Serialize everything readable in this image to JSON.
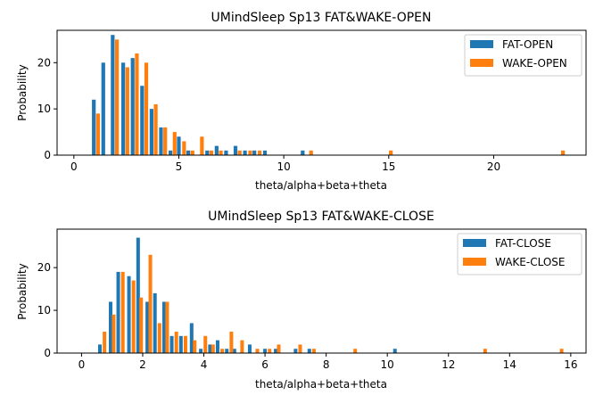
{
  "colors": {
    "fat": "#1f77b4",
    "wake": "#ff7f0e"
  },
  "chart_data": [
    {
      "type": "bar",
      "title": "UMindSleep Sp13 FAT&WAKE-OPEN",
      "xlabel": "theta/alpha+beta+theta",
      "ylabel": "Probability",
      "xlim": [
        -0.8,
        24.4
      ],
      "ylim": [
        0,
        27
      ],
      "xticks": [
        0,
        5,
        10,
        15,
        20
      ],
      "yticks": [
        0,
        10,
        20
      ],
      "legend": "top-right",
      "series": [
        {
          "name": "FAT-OPEN",
          "color": "#1f77b4",
          "bins": [
            [
              0.95,
              12
            ],
            [
              1.4,
              20
            ],
            [
              1.85,
              26
            ],
            [
              2.35,
              20
            ],
            [
              2.8,
              21
            ],
            [
              3.25,
              15
            ],
            [
              3.7,
              10
            ],
            [
              4.15,
              6
            ],
            [
              4.6,
              1
            ],
            [
              5.0,
              4
            ],
            [
              5.45,
              1
            ],
            [
              6.35,
              1
            ],
            [
              6.8,
              2
            ],
            [
              7.25,
              1
            ],
            [
              7.7,
              2
            ],
            [
              8.15,
              1
            ],
            [
              8.6,
              1
            ],
            [
              9.1,
              1
            ],
            [
              10.9,
              1
            ]
          ]
        },
        {
          "name": "WAKE-OPEN",
          "color": "#ff7f0e",
          "bins": [
            [
              1.15,
              9
            ],
            [
              2.05,
              25
            ],
            [
              2.55,
              19
            ],
            [
              3.0,
              22
            ],
            [
              3.45,
              20
            ],
            [
              3.9,
              11
            ],
            [
              4.35,
              6
            ],
            [
              4.8,
              5
            ],
            [
              5.25,
              3
            ],
            [
              5.65,
              1
            ],
            [
              6.1,
              4
            ],
            [
              6.55,
              1
            ],
            [
              7.0,
              1
            ],
            [
              7.9,
              1
            ],
            [
              8.4,
              1
            ],
            [
              8.85,
              1
            ],
            [
              11.3,
              1
            ],
            [
              15.1,
              1
            ],
            [
              23.3,
              1
            ]
          ]
        }
      ]
    },
    {
      "type": "bar",
      "title": "UMindSleep Sp13 FAT&WAKE-CLOSE",
      "xlabel": "theta/alpha+beta+theta",
      "ylabel": "Probability",
      "xlim": [
        -0.8,
        16.5
      ],
      "ylim": [
        0,
        29
      ],
      "xticks": [
        0,
        2,
        4,
        6,
        8,
        10,
        12,
        14,
        16
      ],
      "yticks": [
        0,
        10,
        20
      ],
      "legend": "top-right",
      "series": [
        {
          "name": "FAT-CLOSE",
          "color": "#1f77b4",
          "bins": [
            [
              0.6,
              2
            ],
            [
              0.95,
              12
            ],
            [
              1.2,
              19
            ],
            [
              1.55,
              18
            ],
            [
              1.85,
              27
            ],
            [
              2.15,
              12
            ],
            [
              2.4,
              14
            ],
            [
              2.7,
              12
            ],
            [
              2.95,
              4
            ],
            [
              3.25,
              4
            ],
            [
              3.6,
              7
            ],
            [
              3.9,
              1
            ],
            [
              4.2,
              2
            ],
            [
              4.45,
              3
            ],
            [
              4.75,
              1
            ],
            [
              5.0,
              1
            ],
            [
              5.5,
              2
            ],
            [
              6.0,
              1
            ],
            [
              6.35,
              1
            ],
            [
              7.0,
              1
            ],
            [
              7.45,
              1
            ],
            [
              10.25,
              1
            ]
          ]
        },
        {
          "name": "WAKE-CLOSE",
          "color": "#ff7f0e",
          "bins": [
            [
              0.75,
              5
            ],
            [
              1.05,
              9
            ],
            [
              1.35,
              19
            ],
            [
              1.7,
              17
            ],
            [
              1.95,
              13
            ],
            [
              2.25,
              23
            ],
            [
              2.55,
              7
            ],
            [
              2.8,
              12
            ],
            [
              3.1,
              5
            ],
            [
              3.4,
              4
            ],
            [
              3.7,
              3
            ],
            [
              4.05,
              4
            ],
            [
              4.3,
              2
            ],
            [
              4.6,
              1
            ],
            [
              4.9,
              5
            ],
            [
              5.25,
              3
            ],
            [
              5.75,
              1
            ],
            [
              6.15,
              1
            ],
            [
              6.45,
              2
            ],
            [
              7.15,
              2
            ],
            [
              7.6,
              1
            ],
            [
              8.95,
              1
            ],
            [
              13.2,
              1
            ],
            [
              15.7,
              1
            ]
          ]
        }
      ]
    }
  ]
}
